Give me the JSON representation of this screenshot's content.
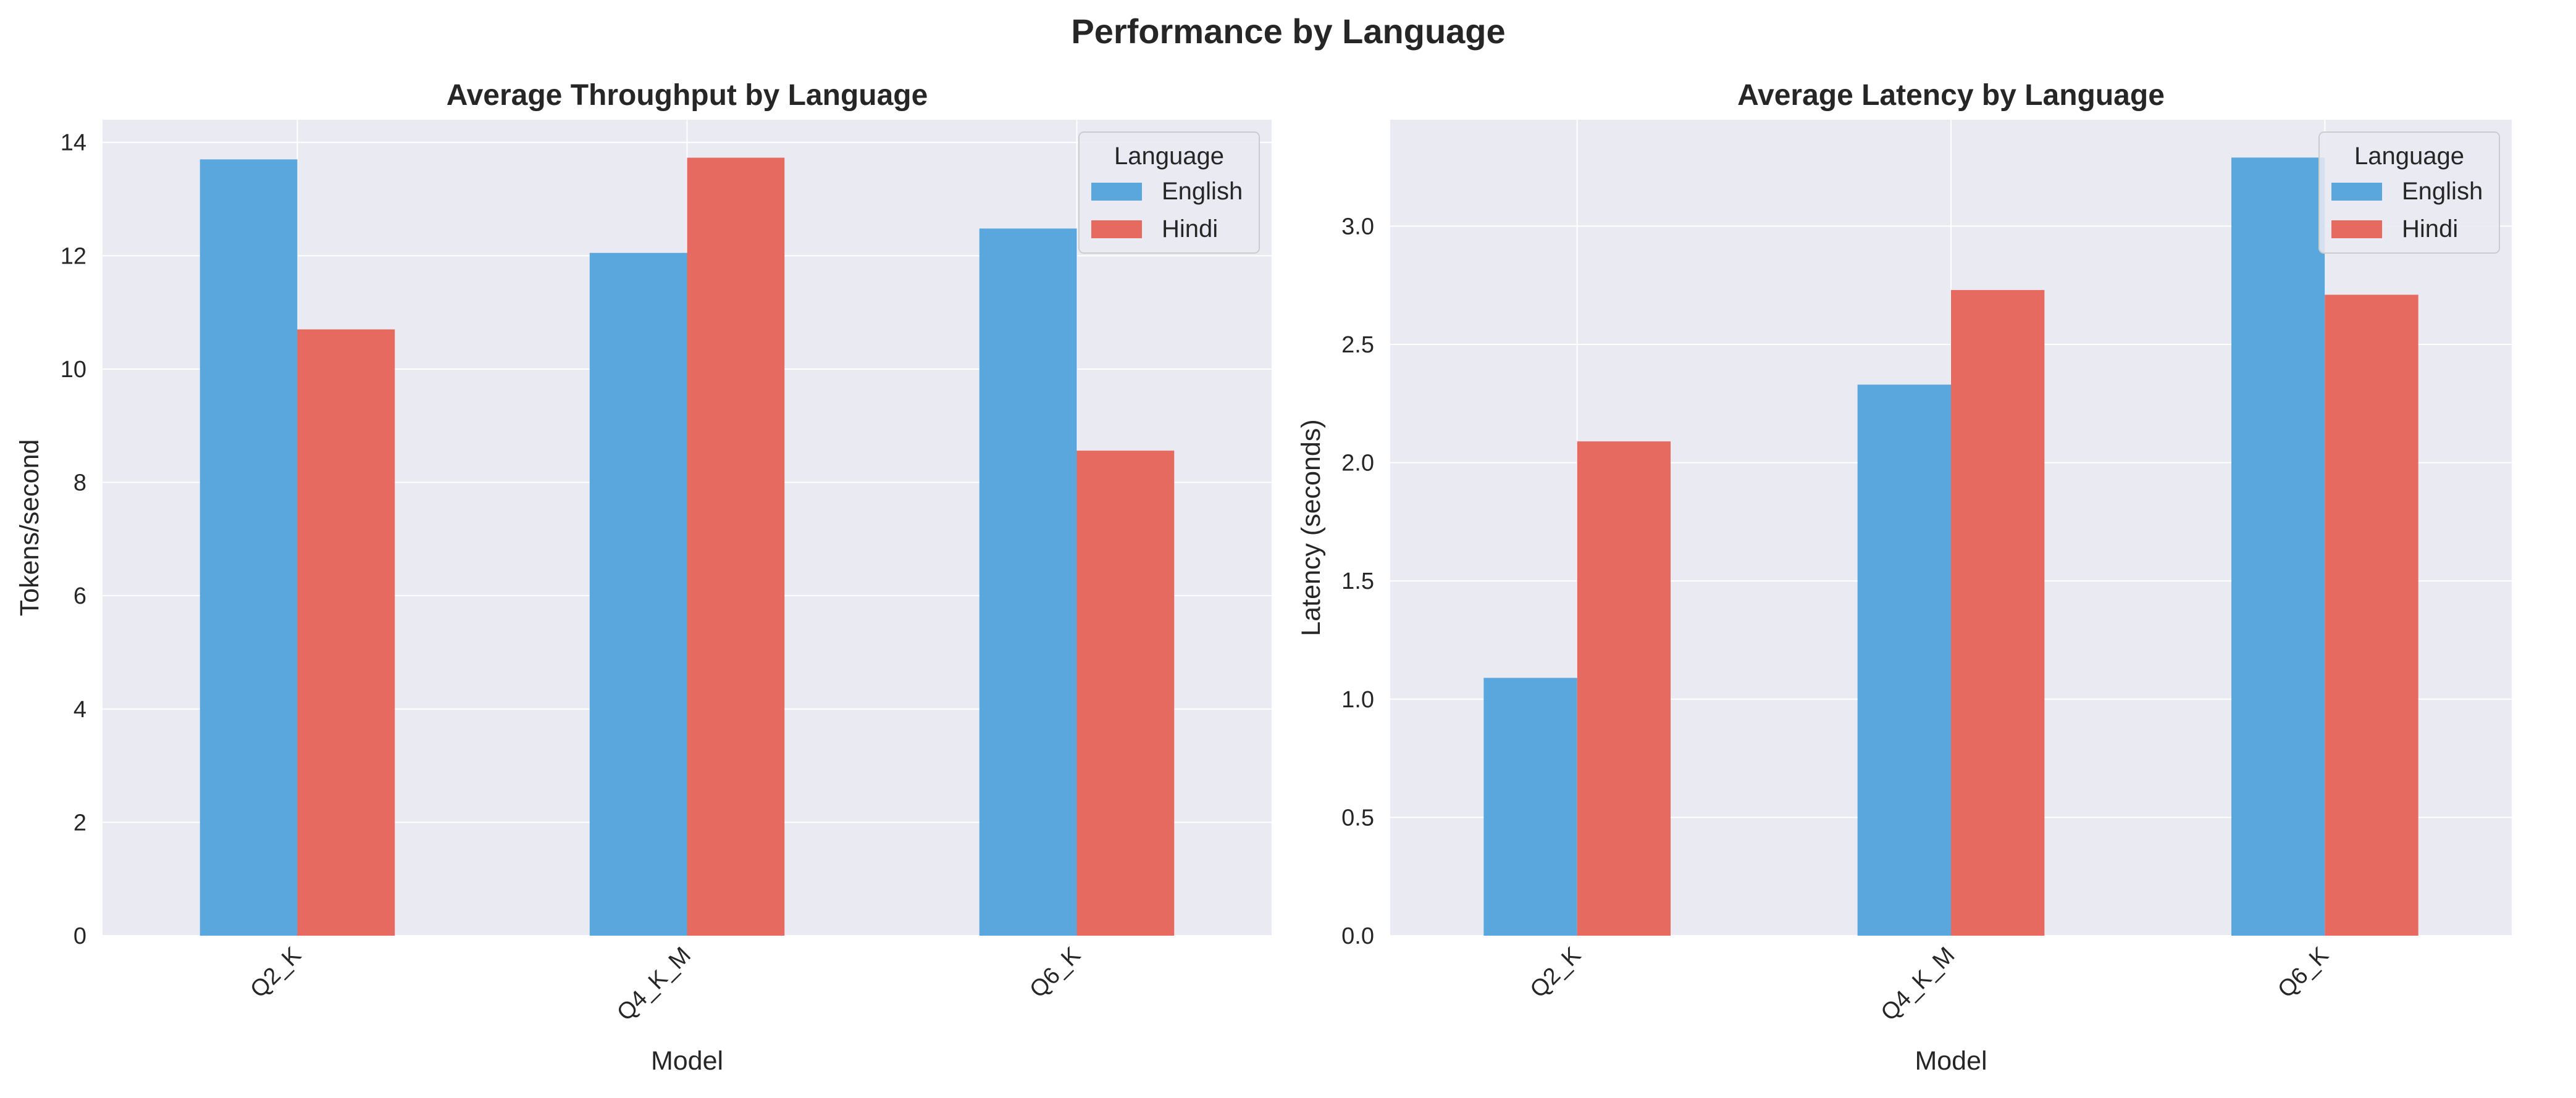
{
  "figure": {
    "title": "Performance by Language"
  },
  "colors": {
    "English": "#5aa7dd",
    "Hindi": "#e66a60",
    "plot_bg": "#eaeaf2",
    "grid": "#ffffff"
  },
  "chart_data": [
    {
      "type": "bar",
      "title": "Average Throughput by Language",
      "xlabel": "Model",
      "ylabel": "Tokens/second",
      "categories": [
        "Q2_K",
        "Q4_K_M",
        "Q6_K"
      ],
      "series": [
        {
          "name": "English",
          "values": [
            13.7,
            12.05,
            12.48
          ]
        },
        {
          "name": "Hindi",
          "values": [
            10.7,
            13.73,
            8.56
          ]
        }
      ],
      "ylim": [
        0,
        14.4
      ],
      "yticks": [
        "0",
        "2",
        "4",
        "6",
        "8",
        "10",
        "12",
        "14"
      ],
      "ytick_values": [
        0,
        2,
        4,
        6,
        8,
        10,
        12,
        14
      ],
      "grid": true,
      "legend": {
        "title": "Language",
        "placement": "upper right"
      }
    },
    {
      "type": "bar",
      "title": "Average Latency by Language",
      "xlabel": "Model",
      "ylabel": "Latency (seconds)",
      "categories": [
        "Q2_K",
        "Q4_K_M",
        "Q6_K"
      ],
      "series": [
        {
          "name": "English",
          "values": [
            1.09,
            2.33,
            3.29
          ]
        },
        {
          "name": "Hindi",
          "values": [
            2.09,
            2.73,
            2.71
          ]
        }
      ],
      "ylim": [
        0,
        3.45
      ],
      "yticks": [
        "0.0",
        "0.5",
        "1.0",
        "1.5",
        "2.0",
        "2.5",
        "3.0"
      ],
      "ytick_values": [
        0,
        0.5,
        1.0,
        1.5,
        2.0,
        2.5,
        3.0
      ],
      "grid": true,
      "legend": {
        "title": "Language",
        "placement": "upper right"
      }
    }
  ]
}
